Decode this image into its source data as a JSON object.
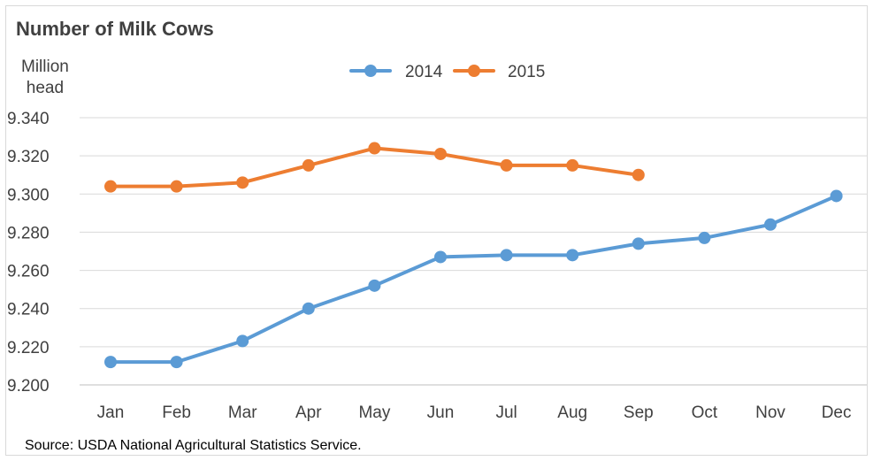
{
  "chart_data": {
    "type": "line",
    "title": "Number of Milk Cows",
    "ylabel": [
      "Million",
      "head"
    ],
    "xlabel": "",
    "categories": [
      "Jan",
      "Feb",
      "Mar",
      "Apr",
      "May",
      "Jun",
      "Jul",
      "Aug",
      "Sep",
      "Oct",
      "Nov",
      "Dec"
    ],
    "ylim": [
      9.2,
      9.34
    ],
    "yticks": [
      "9.200",
      "9.220",
      "9.240",
      "9.260",
      "9.280",
      "9.300",
      "9.320",
      "9.340"
    ],
    "yticks_values": [
      9.2,
      9.22,
      9.24,
      9.26,
      9.28,
      9.3,
      9.32,
      9.34
    ],
    "grid": true,
    "legend_position": "top-center",
    "series": [
      {
        "name": "2014",
        "color": "#5b9bd5",
        "values": [
          9.212,
          9.212,
          9.223,
          9.24,
          9.252,
          9.267,
          9.268,
          9.268,
          9.274,
          9.277,
          9.284,
          9.299
        ]
      },
      {
        "name": "2015",
        "color": "#ed7d31",
        "values": [
          9.304,
          9.304,
          9.306,
          9.315,
          9.324,
          9.321,
          9.315,
          9.315,
          9.31,
          null,
          null,
          null
        ]
      }
    ],
    "source": "Source: USDA National Agricultural Statistics Service."
  }
}
